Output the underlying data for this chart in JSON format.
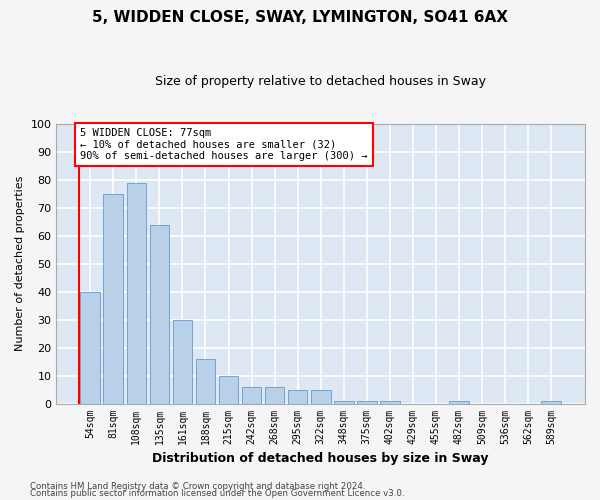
{
  "title": "5, WIDDEN CLOSE, SWAY, LYMINGTON, SO41 6AX",
  "subtitle": "Size of property relative to detached houses in Sway",
  "xlabel": "Distribution of detached houses by size in Sway",
  "ylabel": "Number of detached properties",
  "categories": [
    "54sqm",
    "81sqm",
    "108sqm",
    "135sqm",
    "161sqm",
    "188sqm",
    "215sqm",
    "242sqm",
    "268sqm",
    "295sqm",
    "322sqm",
    "348sqm",
    "375sqm",
    "402sqm",
    "429sqm",
    "455sqm",
    "482sqm",
    "509sqm",
    "536sqm",
    "562sqm",
    "589sqm"
  ],
  "values": [
    40,
    75,
    79,
    64,
    30,
    16,
    10,
    6,
    6,
    5,
    5,
    1,
    1,
    1,
    0,
    0,
    1,
    0,
    0,
    0,
    1
  ],
  "bar_color": "#b8d0e8",
  "bar_edge_color": "#6699cc",
  "background_color": "#dde8f4",
  "grid_color": "#ffffff",
  "fig_background": "#f5f5f5",
  "ylim": [
    0,
    100
  ],
  "yticks": [
    0,
    10,
    20,
    30,
    40,
    50,
    60,
    70,
    80,
    90,
    100
  ],
  "redline_x": 0.5,
  "annotation_box_text": "5 WIDDEN CLOSE: 77sqm\n← 10% of detached houses are smaller (32)\n90% of semi-detached houses are larger (300) →",
  "footer1": "Contains HM Land Registry data © Crown copyright and database right 2024.",
  "footer2": "Contains public sector information licensed under the Open Government Licence v3.0."
}
